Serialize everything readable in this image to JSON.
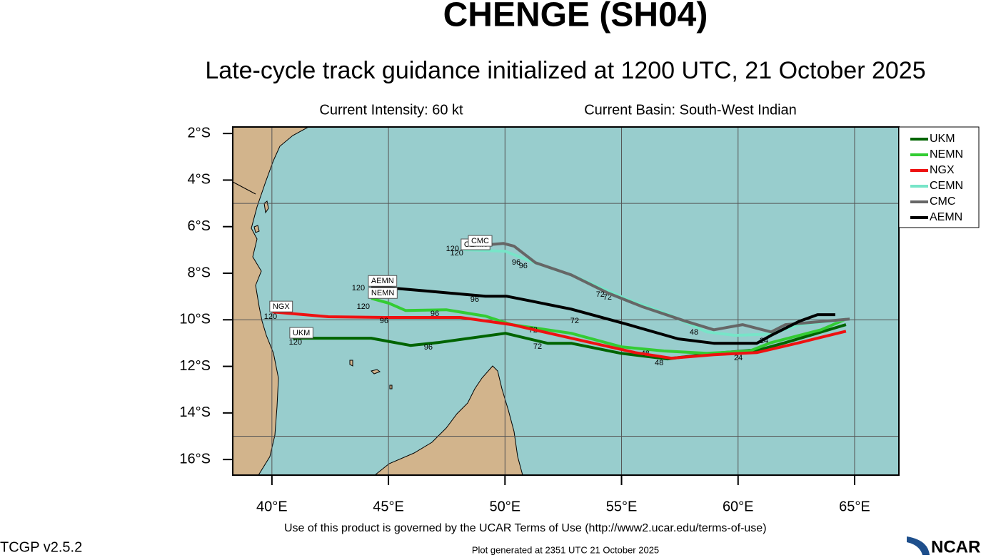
{
  "chart_data": {
    "type": "line",
    "title": "CHENGE (SH04)",
    "subtitle": "Late-cycle track guidance initialized at 1200 UTC, 21 October 2025",
    "intensity": "Current Intensity: 60 kt",
    "basin": "Current Basin: South-West Indian",
    "terms": "Use of this product is governed by the UCAR Terms of Use (http://www2.ucar.edu/terms-of-use)",
    "version": "TCGP v2.5.2",
    "generated": "Plot generated at 2351 UTC   21 October 2025",
    "logo": "NCAR",
    "xlim": [
      38.32,
      66.9
    ],
    "ylim": [
      -16.67,
      -1.72
    ],
    "xticks": [
      {
        "value": 40,
        "label": "40°E"
      },
      {
        "value": 45,
        "label": "45°E"
      },
      {
        "value": 50,
        "label": "50°E"
      },
      {
        "value": 55,
        "label": "55°E"
      },
      {
        "value": 60,
        "label": "60°E"
      },
      {
        "value": 65,
        "label": "65°E"
      }
    ],
    "yticks": [
      {
        "value": -2,
        "label": "2°S"
      },
      {
        "value": -4,
        "label": "4°S"
      },
      {
        "value": -6,
        "label": "6°S"
      },
      {
        "value": -8,
        "label": "8°S"
      },
      {
        "value": -10,
        "label": "10°S"
      },
      {
        "value": -12,
        "label": "12°S"
      },
      {
        "value": -14,
        "label": "14°S"
      },
      {
        "value": -16,
        "label": "16°S"
      }
    ],
    "ygrid": [
      -5,
      -10,
      -15
    ],
    "grid": true,
    "legend": "right",
    "series": [
      {
        "name": "UKM",
        "color": "#006400",
        "x": [
          64.63,
          62.03,
          60.96,
          58.96,
          56.97,
          54.98,
          52.84,
          51.83,
          50.02,
          47.11,
          45.94,
          44.26,
          40.89
        ],
        "values": [
          -10.21,
          -10.98,
          -11.28,
          -11.44,
          -11.68,
          -11.44,
          -11.01,
          -11.01,
          -10.58,
          -10.98,
          -11.1,
          -10.79,
          -10.79
        ],
        "hour_labels": [
          {
            "lon": 61.11,
            "lat": -10.92,
            "label": 24
          },
          {
            "lon": 56.61,
            "lat": -11.86,
            "label": 48
          },
          {
            "lon": 51.4,
            "lat": -11.16,
            "label": 72
          },
          {
            "lon": 46.71,
            "lat": -11.19,
            "label": 96
          },
          {
            "lon": 41.01,
            "lat": -10.98,
            "label": 120
          }
        ]
      },
      {
        "name": "NEMN",
        "color": "#33cc33",
        "x": [
          64.63,
          63.56,
          61.42,
          60.5,
          58.66,
          56.82,
          54.98,
          52.84,
          50.29,
          49.16,
          47.48,
          45.73,
          45.02,
          44.26
        ],
        "values": [
          -9.97,
          -10.43,
          -10.98,
          -11.34,
          -11.44,
          -11.34,
          -11.16,
          -10.58,
          -10.21,
          -9.84,
          -9.57,
          -9.6,
          -9.29,
          -9.08
        ],
        "hour_labels": [
          {
            "lon": 56.02,
            "lat": -11.47,
            "label": 48
          },
          {
            "lon": 51.21,
            "lat": -10.46,
            "label": 72
          },
          {
            "lon": 46.99,
            "lat": -9.75,
            "label": 96
          },
          {
            "lon": 43.92,
            "lat": -9.44,
            "label": 120
          }
        ]
      },
      {
        "name": "NGX",
        "color": "#ee1111",
        "x": [
          64.63,
          62.64,
          60.8,
          58.96,
          57.13,
          55.59,
          52.84,
          50.29,
          48.09,
          44.87,
          42.42,
          40.03
        ],
        "values": [
          -10.49,
          -10.98,
          -11.41,
          -11.5,
          -11.65,
          -11.41,
          -10.79,
          -10.21,
          -9.9,
          -9.9,
          -9.87,
          -9.66
        ],
        "hour_labels": [
          {
            "lon": 60.01,
            "lat": -11.65,
            "label": 24
          },
          {
            "lon": 44.81,
            "lat": -10.06,
            "label": 96
          },
          {
            "lon": 39.94,
            "lat": -9.87,
            "label": 120
          }
        ]
      },
      {
        "name": "CEMN",
        "color": "#77e5c8",
        "x": [
          64.79,
          62.64,
          61.42,
          59.88,
          58.66,
          56.97,
          55.29,
          52.84,
          51.0,
          50.02,
          48.24
        ],
        "values": [
          -9.97,
          -10.21,
          -10.61,
          -10.67,
          -10.52,
          -9.75,
          -9.14,
          -8.07,
          -7.45,
          -7.06,
          -6.99
        ],
        "hour_labels": [
          {
            "lon": 54.4,
            "lat": -9.05,
            "label": 72
          },
          {
            "lon": 50.78,
            "lat": -7.7,
            "label": 96
          },
          {
            "lon": 47.93,
            "lat": -7.15,
            "label": 120
          }
        ]
      },
      {
        "name": "CMC",
        "color": "#666666",
        "x": [
          64.79,
          62.03,
          61.42,
          60.19,
          58.96,
          57.74,
          55.9,
          54.37,
          52.84,
          51.31,
          50.39,
          49.93,
          48.55
        ],
        "values": [
          -9.97,
          -10.21,
          -10.52,
          -10.21,
          -10.43,
          -10.06,
          -9.44,
          -8.83,
          -8.07,
          -7.55,
          -6.84,
          -6.72,
          -6.84
        ],
        "hour_labels": [
          {
            "lon": 54.09,
            "lat": -8.92,
            "label": 72
          },
          {
            "lon": 50.48,
            "lat": -7.55,
            "label": 96
          },
          {
            "lon": 47.75,
            "lat": -6.96,
            "label": 120
          }
        ]
      },
      {
        "name": "AEMN",
        "color": "#000000",
        "x": [
          64.17,
          63.41,
          62.64,
          61.42,
          60.8,
          58.96,
          57.43,
          55.29,
          52.84,
          51.15,
          50.08,
          49.16,
          46.71,
          44.26
        ],
        "values": [
          -9.78,
          -9.78,
          -10.06,
          -10.67,
          -11.01,
          -11.01,
          -10.82,
          -10.21,
          -9.54,
          -9.2,
          -8.99,
          -8.99,
          -8.77,
          -8.56
        ],
        "hour_labels": [
          {
            "lon": 58.11,
            "lat": -10.55,
            "label": 48
          },
          {
            "lon": 52.99,
            "lat": -10.06,
            "label": 72
          },
          {
            "lon": 48.7,
            "lat": -9.14,
            "label": 96
          },
          {
            "lon": 43.71,
            "lat": -8.65,
            "label": 120
          }
        ]
      }
    ]
  }
}
